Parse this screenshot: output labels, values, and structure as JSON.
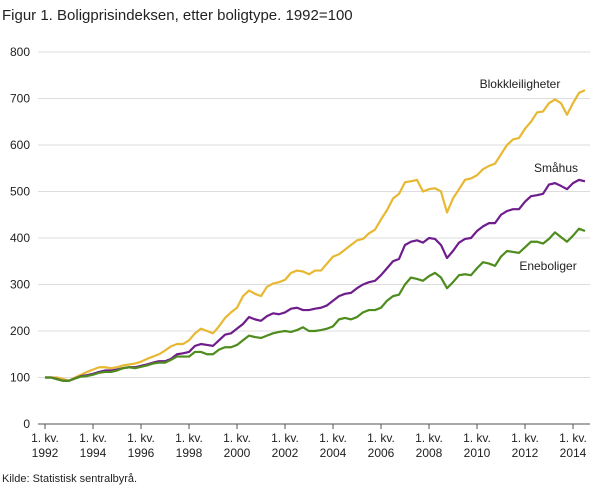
{
  "chart_data": {
    "type": "line",
    "title": "Figur 1. Boligprisindeksen, etter boligtype. 1992=100",
    "source": "Kilde: Statistisk sentralbyrå.",
    "categories": [
      "1. kv. 1992",
      null,
      null,
      null,
      null,
      null,
      null,
      null,
      "1. kv. 1994",
      null,
      null,
      null,
      null,
      null,
      null,
      null,
      "1. kv. 1996",
      null,
      null,
      null,
      null,
      null,
      null,
      null,
      "1. kv. 1998",
      null,
      null,
      null,
      null,
      null,
      null,
      null,
      "1. kv. 2000",
      null,
      null,
      null,
      null,
      null,
      null,
      null,
      "1. kv. 2002",
      null,
      null,
      null,
      null,
      null,
      null,
      null,
      "1. kv. 2004",
      null,
      null,
      null,
      null,
      null,
      null,
      null,
      "1. kv. 2006",
      null,
      null,
      null,
      null,
      null,
      null,
      null,
      "1. kv. 2008",
      null,
      null,
      null,
      null,
      null,
      null,
      null,
      "1. kv. 2010",
      null,
      null,
      null,
      null,
      null,
      null,
      null,
      "1. kv. 2012",
      null,
      null,
      null,
      null,
      null,
      null,
      null,
      "1. kv. 2014",
      null,
      null
    ],
    "series": [
      {
        "name": "Blokkleiligheter",
        "color": "#e8b833",
        "values": [
          100,
          100,
          100,
          97,
          93,
          100,
          106,
          112,
          117,
          122,
          122,
          120,
          122,
          126,
          128,
          130,
          134,
          140,
          145,
          150,
          158,
          167,
          172,
          172,
          180,
          195,
          205,
          200,
          195,
          210,
          228,
          240,
          250,
          275,
          287,
          280,
          275,
          295,
          302,
          305,
          310,
          325,
          330,
          328,
          322,
          330,
          330,
          345,
          360,
          365,
          375,
          385,
          395,
          398,
          410,
          418,
          440,
          460,
          485,
          495,
          520,
          522,
          525,
          500,
          505,
          507,
          500,
          455,
          485,
          505,
          525,
          528,
          535,
          548,
          555,
          560,
          580,
          600,
          612,
          615,
          635,
          650,
          670,
          672,
          690,
          698,
          690,
          665,
          690,
          712,
          718
        ]
      },
      {
        "name": "Småhus",
        "color": "#6f1d8c",
        "values": [
          100,
          100,
          97,
          93,
          93,
          98,
          103,
          105,
          108,
          112,
          115,
          115,
          117,
          120,
          122,
          122,
          125,
          128,
          132,
          135,
          135,
          140,
          150,
          152,
          155,
          168,
          172,
          170,
          168,
          180,
          192,
          195,
          205,
          215,
          230,
          225,
          222,
          232,
          238,
          236,
          240,
          248,
          250,
          245,
          245,
          248,
          250,
          255,
          265,
          275,
          280,
          282,
          292,
          300,
          305,
          308,
          320,
          335,
          350,
          355,
          385,
          392,
          395,
          390,
          400,
          398,
          385,
          357,
          372,
          390,
          398,
          400,
          415,
          425,
          432,
          432,
          450,
          458,
          462,
          462,
          478,
          490,
          492,
          495,
          515,
          518,
          512,
          505,
          518,
          525,
          522
        ]
      },
      {
        "name": "Eneboliger",
        "color": "#4e8c1e",
        "values": [
          100,
          100,
          96,
          93,
          93,
          98,
          102,
          103,
          106,
          110,
          112,
          112,
          115,
          120,
          122,
          120,
          123,
          126,
          130,
          132,
          132,
          138,
          145,
          145,
          145,
          155,
          155,
          150,
          150,
          160,
          165,
          165,
          170,
          180,
          190,
          187,
          185,
          190,
          195,
          198,
          200,
          198,
          202,
          208,
          200,
          200,
          202,
          205,
          210,
          225,
          228,
          225,
          230,
          240,
          245,
          245,
          250,
          265,
          275,
          278,
          300,
          315,
          312,
          308,
          318,
          325,
          315,
          292,
          305,
          320,
          322,
          320,
          335,
          348,
          345,
          340,
          360,
          372,
          370,
          368,
          380,
          392,
          392,
          388,
          398,
          412,
          402,
          392,
          405,
          420,
          415
        ]
      }
    ],
    "ylim": [
      0,
      800
    ],
    "yticks": [
      0,
      100,
      200,
      300,
      400,
      500,
      600,
      700,
      800
    ],
    "grid": true
  }
}
